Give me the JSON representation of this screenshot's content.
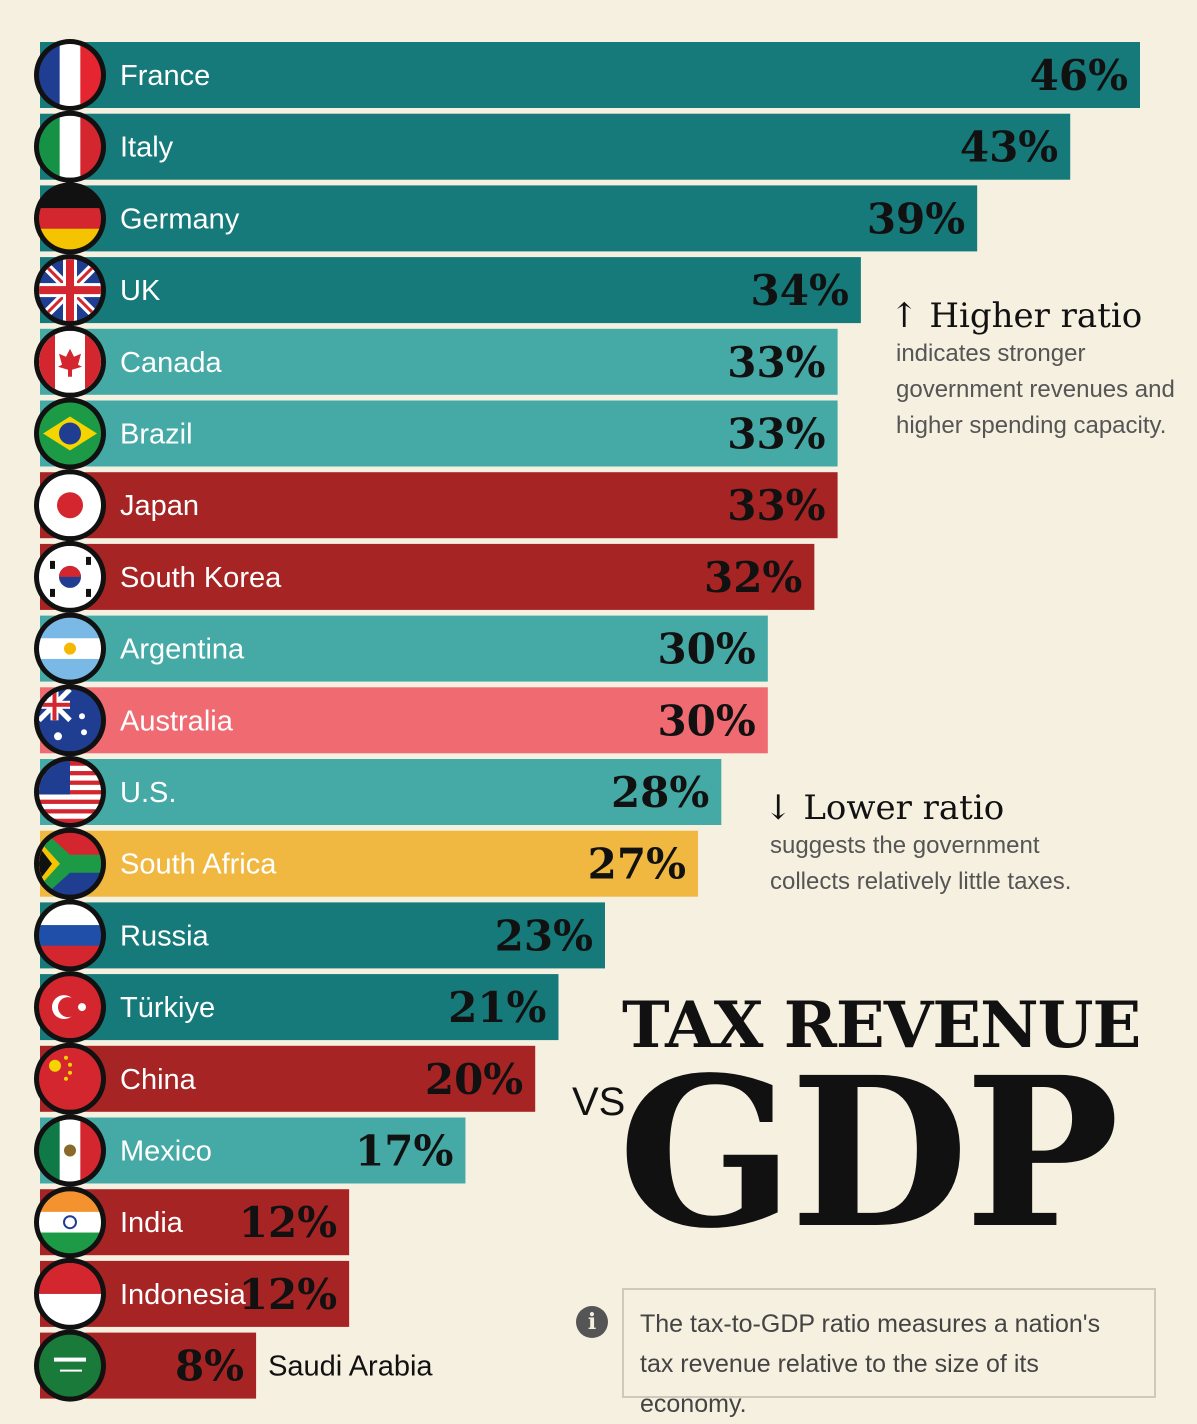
{
  "chart_data": {
    "type": "bar",
    "orientation": "horizontal",
    "title": "TAX REVENUE",
    "title_connector": "VS",
    "title_big": "GDP",
    "xlim": [
      0,
      46
    ],
    "categories": [
      "France",
      "Italy",
      "Germany",
      "UK",
      "Canada",
      "Brazil",
      "Japan",
      "South Korea",
      "Argentina",
      "Australia",
      "U.S.",
      "South Africa",
      "Russia",
      "Türkiye",
      "China",
      "Mexico",
      "India",
      "Indonesia",
      "Saudi Arabia"
    ],
    "values": [
      46,
      43,
      39,
      34,
      33,
      33,
      33,
      32,
      30,
      30,
      28,
      27,
      23,
      21,
      20,
      17,
      12,
      12,
      8
    ],
    "value_labels": [
      "46%",
      "43%",
      "39%",
      "34%",
      "33%",
      "33%",
      "33%",
      "32%",
      "30%",
      "30%",
      "28%",
      "27%",
      "23%",
      "21%",
      "20%",
      "17%",
      "12%",
      "12%",
      "8%"
    ],
    "region_colors": {
      "europe": "#16797a",
      "americas": "#45aaa6",
      "asia": "#a72424",
      "oceania": "#f06a72",
      "africa": "#f0b840"
    },
    "bar_regions": [
      "europe",
      "europe",
      "europe",
      "europe",
      "americas",
      "americas",
      "asia",
      "asia",
      "americas",
      "oceania",
      "americas",
      "africa",
      "europe",
      "europe",
      "asia",
      "americas",
      "asia",
      "asia",
      "asia"
    ]
  },
  "flags": [
    "france-flag-icon",
    "italy-flag-icon",
    "germany-flag-icon",
    "uk-flag-icon",
    "canada-flag-icon",
    "brazil-flag-icon",
    "japan-flag-icon",
    "south-korea-flag-icon",
    "argentina-flag-icon",
    "australia-flag-icon",
    "us-flag-icon",
    "south-africa-flag-icon",
    "russia-flag-icon",
    "turkiye-flag-icon",
    "china-flag-icon",
    "mexico-flag-icon",
    "india-flag-icon",
    "indonesia-flag-icon",
    "saudi-arabia-flag-icon"
  ],
  "annotations": {
    "higher": {
      "arrow": "↑",
      "title": "Higher ratio",
      "body": "indicates stronger\ngovernment revenues and\nhigher spending capacity."
    },
    "lower": {
      "arrow": "↓",
      "title": "Lower ratio",
      "body": "suggests the government\ncollects relatively little taxes."
    }
  },
  "info": {
    "icon": "info-icon",
    "text": "The tax-to-GDP ratio measures a nation's tax revenue relative to the size of its economy."
  }
}
